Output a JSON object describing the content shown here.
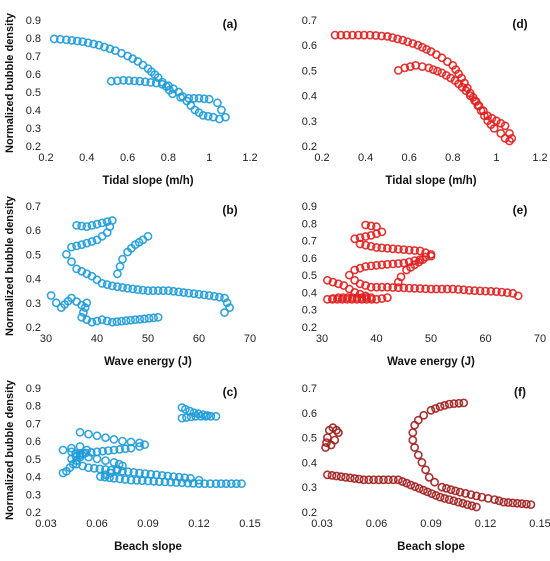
{
  "ylabel": "Normalized bubble density",
  "colors": {
    "blue": "#1d9bd8",
    "red": "#e01f1f",
    "dark_red": "#a11c1c"
  },
  "chart_data": [
    {
      "type": "scatter",
      "panel_label": "(a)",
      "xlabel": "Tidal slope (m/h)",
      "xlim": [
        0.2,
        1.2
      ],
      "ylim": [
        0.2,
        0.9
      ],
      "xticks": [
        "0.2",
        "0.4",
        "0.6",
        "0.8",
        "1",
        "1.2"
      ],
      "yticks": [
        "0.2",
        "0.3",
        "0.4",
        "0.5",
        "0.6",
        "0.7",
        "0.8",
        "0.9"
      ],
      "color": "#1d9bd8",
      "curves": [
        [
          [
            0.24,
            0.795
          ],
          [
            0.3,
            0.79
          ],
          [
            0.38,
            0.78
          ],
          [
            0.46,
            0.76
          ],
          [
            0.54,
            0.73
          ],
          [
            0.6,
            0.7
          ],
          [
            0.65,
            0.67
          ],
          [
            0.7,
            0.63
          ],
          [
            0.75,
            0.58
          ],
          [
            0.79,
            0.53
          ],
          [
            0.82,
            0.49
          ],
          [
            0.86,
            0.47
          ],
          [
            0.9,
            0.465
          ],
          [
            0.95,
            0.465
          ],
          [
            1.0,
            0.46
          ],
          [
            1.04,
            0.44
          ],
          [
            1.06,
            0.4
          ],
          [
            1.08,
            0.36
          ],
          [
            1.05,
            0.35
          ],
          [
            1.02,
            0.36
          ],
          [
            0.97,
            0.37
          ],
          [
            0.93,
            0.4
          ],
          [
            0.89,
            0.45
          ],
          [
            0.85,
            0.5
          ],
          [
            0.8,
            0.535
          ],
          [
            0.74,
            0.55
          ],
          [
            0.66,
            0.56
          ],
          [
            0.58,
            0.565
          ],
          [
            0.52,
            0.56
          ]
        ]
      ]
    },
    {
      "type": "scatter",
      "panel_label": "(d)",
      "xlabel": "Tidal slope (m/h)",
      "xlim": [
        0.2,
        1.2
      ],
      "ylim": [
        0.2,
        0.7
      ],
      "xticks": [
        "0.2",
        "0.4",
        "0.6",
        "0.8",
        "1",
        "1.2"
      ],
      "yticks": [
        "0.2",
        "0.3",
        "0.4",
        "0.5",
        "0.6",
        "0.7"
      ],
      "color": "#e01f1f",
      "curves": [
        [
          [
            0.26,
            0.64
          ],
          [
            0.34,
            0.64
          ],
          [
            0.42,
            0.64
          ],
          [
            0.5,
            0.635
          ],
          [
            0.57,
            0.62
          ],
          [
            0.64,
            0.6
          ],
          [
            0.7,
            0.575
          ],
          [
            0.75,
            0.55
          ],
          [
            0.8,
            0.52
          ],
          [
            0.84,
            0.47
          ],
          [
            0.88,
            0.41
          ],
          [
            0.92,
            0.36
          ],
          [
            0.96,
            0.32
          ],
          [
            1.0,
            0.3
          ],
          [
            1.04,
            0.28
          ],
          [
            1.06,
            0.25
          ],
          [
            1.07,
            0.23
          ],
          [
            1.06,
            0.22
          ],
          [
            1.04,
            0.23
          ],
          [
            1.02,
            0.25
          ],
          [
            0.99,
            0.27
          ],
          [
            0.96,
            0.3
          ],
          [
            0.93,
            0.34
          ],
          [
            0.9,
            0.38
          ],
          [
            0.86,
            0.42
          ],
          [
            0.81,
            0.46
          ],
          [
            0.75,
            0.49
          ],
          [
            0.69,
            0.51
          ],
          [
            0.63,
            0.52
          ],
          [
            0.58,
            0.51
          ],
          [
            0.55,
            0.5
          ]
        ]
      ]
    },
    {
      "type": "scatter",
      "panel_label": "(b)",
      "xlabel": "Wave energy (J)",
      "xlim": [
        30,
        70
      ],
      "ylim": [
        0.2,
        0.7
      ],
      "xticks": [
        "30",
        "40",
        "50",
        "60",
        "70"
      ],
      "yticks": [
        "0.2",
        "0.3",
        "0.4",
        "0.5",
        "0.6",
        "0.7"
      ],
      "color": "#1d9bd8",
      "curves": [
        [
          [
            36,
            0.62
          ],
          [
            38,
            0.615
          ],
          [
            41,
            0.63
          ],
          [
            43,
            0.64
          ],
          [
            42,
            0.59
          ],
          [
            40,
            0.56
          ],
          [
            37,
            0.54
          ],
          [
            35,
            0.53
          ],
          [
            34,
            0.5
          ],
          [
            35,
            0.47
          ],
          [
            36,
            0.44
          ],
          [
            37,
            0.43
          ],
          [
            39,
            0.41
          ],
          [
            41,
            0.38
          ],
          [
            43,
            0.37
          ],
          [
            46,
            0.36
          ],
          [
            50,
            0.35
          ],
          [
            54,
            0.35
          ],
          [
            58,
            0.34
          ],
          [
            62,
            0.33
          ],
          [
            65,
            0.32
          ],
          [
            66,
            0.28
          ],
          [
            65,
            0.26
          ]
        ],
        [
          [
            44,
            0.42
          ],
          [
            44.5,
            0.45
          ],
          [
            45,
            0.48
          ],
          [
            46,
            0.51
          ],
          [
            47.5,
            0.54
          ],
          [
            49,
            0.56
          ],
          [
            50,
            0.575
          ]
        ],
        [
          [
            31,
            0.33
          ],
          [
            32,
            0.3
          ],
          [
            33,
            0.28
          ],
          [
            35,
            0.32
          ],
          [
            37,
            0.29
          ],
          [
            38,
            0.3
          ],
          [
            37,
            0.24
          ],
          [
            39,
            0.22
          ],
          [
            41,
            0.23
          ],
          [
            43,
            0.22
          ],
          [
            52,
            0.24
          ]
        ]
      ]
    },
    {
      "type": "scatter",
      "panel_label": "(e)",
      "xlabel": "Wave energy (J)",
      "xlim": [
        30,
        70
      ],
      "ylim": [
        0.2,
        0.9
      ],
      "xticks": [
        "30",
        "40",
        "50",
        "60",
        "70"
      ],
      "yticks": [
        "0.2",
        "0.3",
        "0.4",
        "0.5",
        "0.6",
        "0.7",
        "0.8",
        "0.9"
      ],
      "color": "#e01f1f",
      "curves": [
        [
          [
            38,
            0.79
          ],
          [
            40,
            0.78
          ],
          [
            41,
            0.75
          ],
          [
            39,
            0.73
          ],
          [
            36,
            0.71
          ],
          [
            37,
            0.68
          ],
          [
            40,
            0.66
          ],
          [
            44,
            0.65
          ],
          [
            48,
            0.64
          ],
          [
            50,
            0.62
          ],
          [
            48,
            0.59
          ],
          [
            45,
            0.57
          ],
          [
            41,
            0.56
          ],
          [
            38,
            0.55
          ],
          [
            36,
            0.53
          ],
          [
            35,
            0.5
          ],
          [
            36,
            0.47
          ],
          [
            37,
            0.45
          ],
          [
            39,
            0.43
          ],
          [
            42,
            0.43
          ],
          [
            46,
            0.425
          ],
          [
            50,
            0.42
          ],
          [
            54,
            0.42
          ],
          [
            58,
            0.41
          ],
          [
            62,
            0.405
          ],
          [
            65,
            0.395
          ],
          [
            66,
            0.38
          ]
        ],
        [
          [
            44,
            0.46
          ],
          [
            44.5,
            0.49
          ],
          [
            45.5,
            0.53
          ],
          [
            47,
            0.56
          ],
          [
            48.5,
            0.59
          ],
          [
            50,
            0.61
          ]
        ],
        [
          [
            31,
            0.47
          ],
          [
            32,
            0.46
          ],
          [
            34,
            0.44
          ],
          [
            35,
            0.42
          ],
          [
            36,
            0.4
          ],
          [
            38,
            0.38
          ],
          [
            39,
            0.37
          ],
          [
            33,
            0.37
          ],
          [
            31,
            0.36
          ],
          [
            40,
            0.36
          ],
          [
            42,
            0.37
          ]
        ]
      ]
    },
    {
      "type": "scatter",
      "panel_label": "(c)",
      "xlabel": "Beach slope",
      "xlim": [
        0.03,
        0.15
      ],
      "ylim": [
        0.2,
        0.9
      ],
      "xticks": [
        "0.03",
        "0.06",
        "0.09",
        "0.12",
        "0.15"
      ],
      "yticks": [
        "0.2",
        "0.3",
        "0.4",
        "0.5",
        "0.6",
        "0.7",
        "0.8",
        "0.9"
      ],
      "color": "#1d9bd8",
      "curves": [
        [
          [
            0.04,
            0.55
          ],
          [
            0.045,
            0.54
          ],
          [
            0.05,
            0.52
          ],
          [
            0.055,
            0.51
          ],
          [
            0.06,
            0.5
          ],
          [
            0.065,
            0.49
          ],
          [
            0.07,
            0.48
          ],
          [
            0.073,
            0.47
          ],
          [
            0.075,
            0.46
          ],
          [
            0.072,
            0.44
          ],
          [
            0.068,
            0.42
          ],
          [
            0.065,
            0.41
          ],
          [
            0.062,
            0.4
          ],
          [
            0.07,
            0.39
          ],
          [
            0.08,
            0.38
          ],
          [
            0.09,
            0.375
          ],
          [
            0.1,
            0.37
          ],
          [
            0.11,
            0.365
          ],
          [
            0.12,
            0.36
          ],
          [
            0.13,
            0.36
          ],
          [
            0.145,
            0.36
          ]
        ],
        [
          [
            0.05,
            0.65
          ],
          [
            0.055,
            0.64
          ],
          [
            0.06,
            0.63
          ],
          [
            0.065,
            0.62
          ],
          [
            0.07,
            0.61
          ],
          [
            0.075,
            0.6
          ],
          [
            0.08,
            0.595
          ],
          [
            0.085,
            0.59
          ],
          [
            0.088,
            0.58
          ],
          [
            0.085,
            0.57
          ],
          [
            0.08,
            0.56
          ],
          [
            0.07,
            0.55
          ],
          [
            0.06,
            0.54
          ],
          [
            0.05,
            0.53
          ],
          [
            0.045,
            0.5
          ],
          [
            0.048,
            0.47
          ],
          [
            0.055,
            0.45
          ],
          [
            0.065,
            0.44
          ],
          [
            0.075,
            0.43
          ],
          [
            0.085,
            0.42
          ],
          [
            0.095,
            0.41
          ],
          [
            0.105,
            0.4
          ],
          [
            0.115,
            0.39
          ],
          [
            0.12,
            0.38
          ]
        ],
        [
          [
            0.11,
            0.79
          ],
          [
            0.112,
            0.78
          ],
          [
            0.117,
            0.76
          ],
          [
            0.125,
            0.745
          ],
          [
            0.13,
            0.74
          ],
          [
            0.118,
            0.74
          ],
          [
            0.11,
            0.73
          ]
        ],
        [
          [
            0.04,
            0.42
          ],
          [
            0.042,
            0.43
          ],
          [
            0.044,
            0.45
          ],
          [
            0.046,
            0.47
          ],
          [
            0.048,
            0.49
          ],
          [
            0.05,
            0.51
          ],
          [
            0.052,
            0.53
          ],
          [
            0.054,
            0.55
          ],
          [
            0.05,
            0.57
          ],
          [
            0.045,
            0.56
          ]
        ]
      ]
    },
    {
      "type": "scatter",
      "panel_label": "(f)",
      "xlabel": "Beach slope",
      "xlim": [
        0.03,
        0.15
      ],
      "ylim": [
        0.2,
        0.7
      ],
      "xticks": [
        "0.03",
        "0.06",
        "0.09",
        "0.12",
        "0.15"
      ],
      "yticks": [
        "0.2",
        "0.3",
        "0.4",
        "0.5",
        "0.6",
        "0.7"
      ],
      "color": "#a11c1c",
      "curves": [
        [
          [
            0.108,
            0.64
          ],
          [
            0.1,
            0.635
          ],
          [
            0.095,
            0.625
          ],
          [
            0.09,
            0.61
          ],
          [
            0.086,
            0.59
          ],
          [
            0.083,
            0.57
          ],
          [
            0.081,
            0.55
          ],
          [
            0.08,
            0.52
          ],
          [
            0.08,
            0.49
          ],
          [
            0.081,
            0.46
          ],
          [
            0.083,
            0.43
          ],
          [
            0.085,
            0.4
          ],
          [
            0.087,
            0.37
          ],
          [
            0.089,
            0.34
          ],
          [
            0.092,
            0.32
          ],
          [
            0.096,
            0.3
          ],
          [
            0.101,
            0.29
          ],
          [
            0.106,
            0.28
          ],
          [
            0.112,
            0.27
          ],
          [
            0.118,
            0.26
          ],
          [
            0.125,
            0.25
          ],
          [
            0.13,
            0.24
          ],
          [
            0.145,
            0.23
          ]
        ],
        [
          [
            0.032,
            0.46
          ],
          [
            0.033,
            0.5
          ],
          [
            0.034,
            0.53
          ],
          [
            0.036,
            0.54
          ],
          [
            0.038,
            0.53
          ],
          [
            0.039,
            0.52
          ],
          [
            0.037,
            0.49
          ],
          [
            0.035,
            0.47
          ]
        ],
        [
          [
            0.033,
            0.35
          ],
          [
            0.053,
            0.33
          ],
          [
            0.072,
            0.33
          ],
          [
            0.095,
            0.26
          ],
          [
            0.105,
            0.24
          ],
          [
            0.11,
            0.23
          ],
          [
            0.115,
            0.22
          ]
        ]
      ]
    }
  ]
}
